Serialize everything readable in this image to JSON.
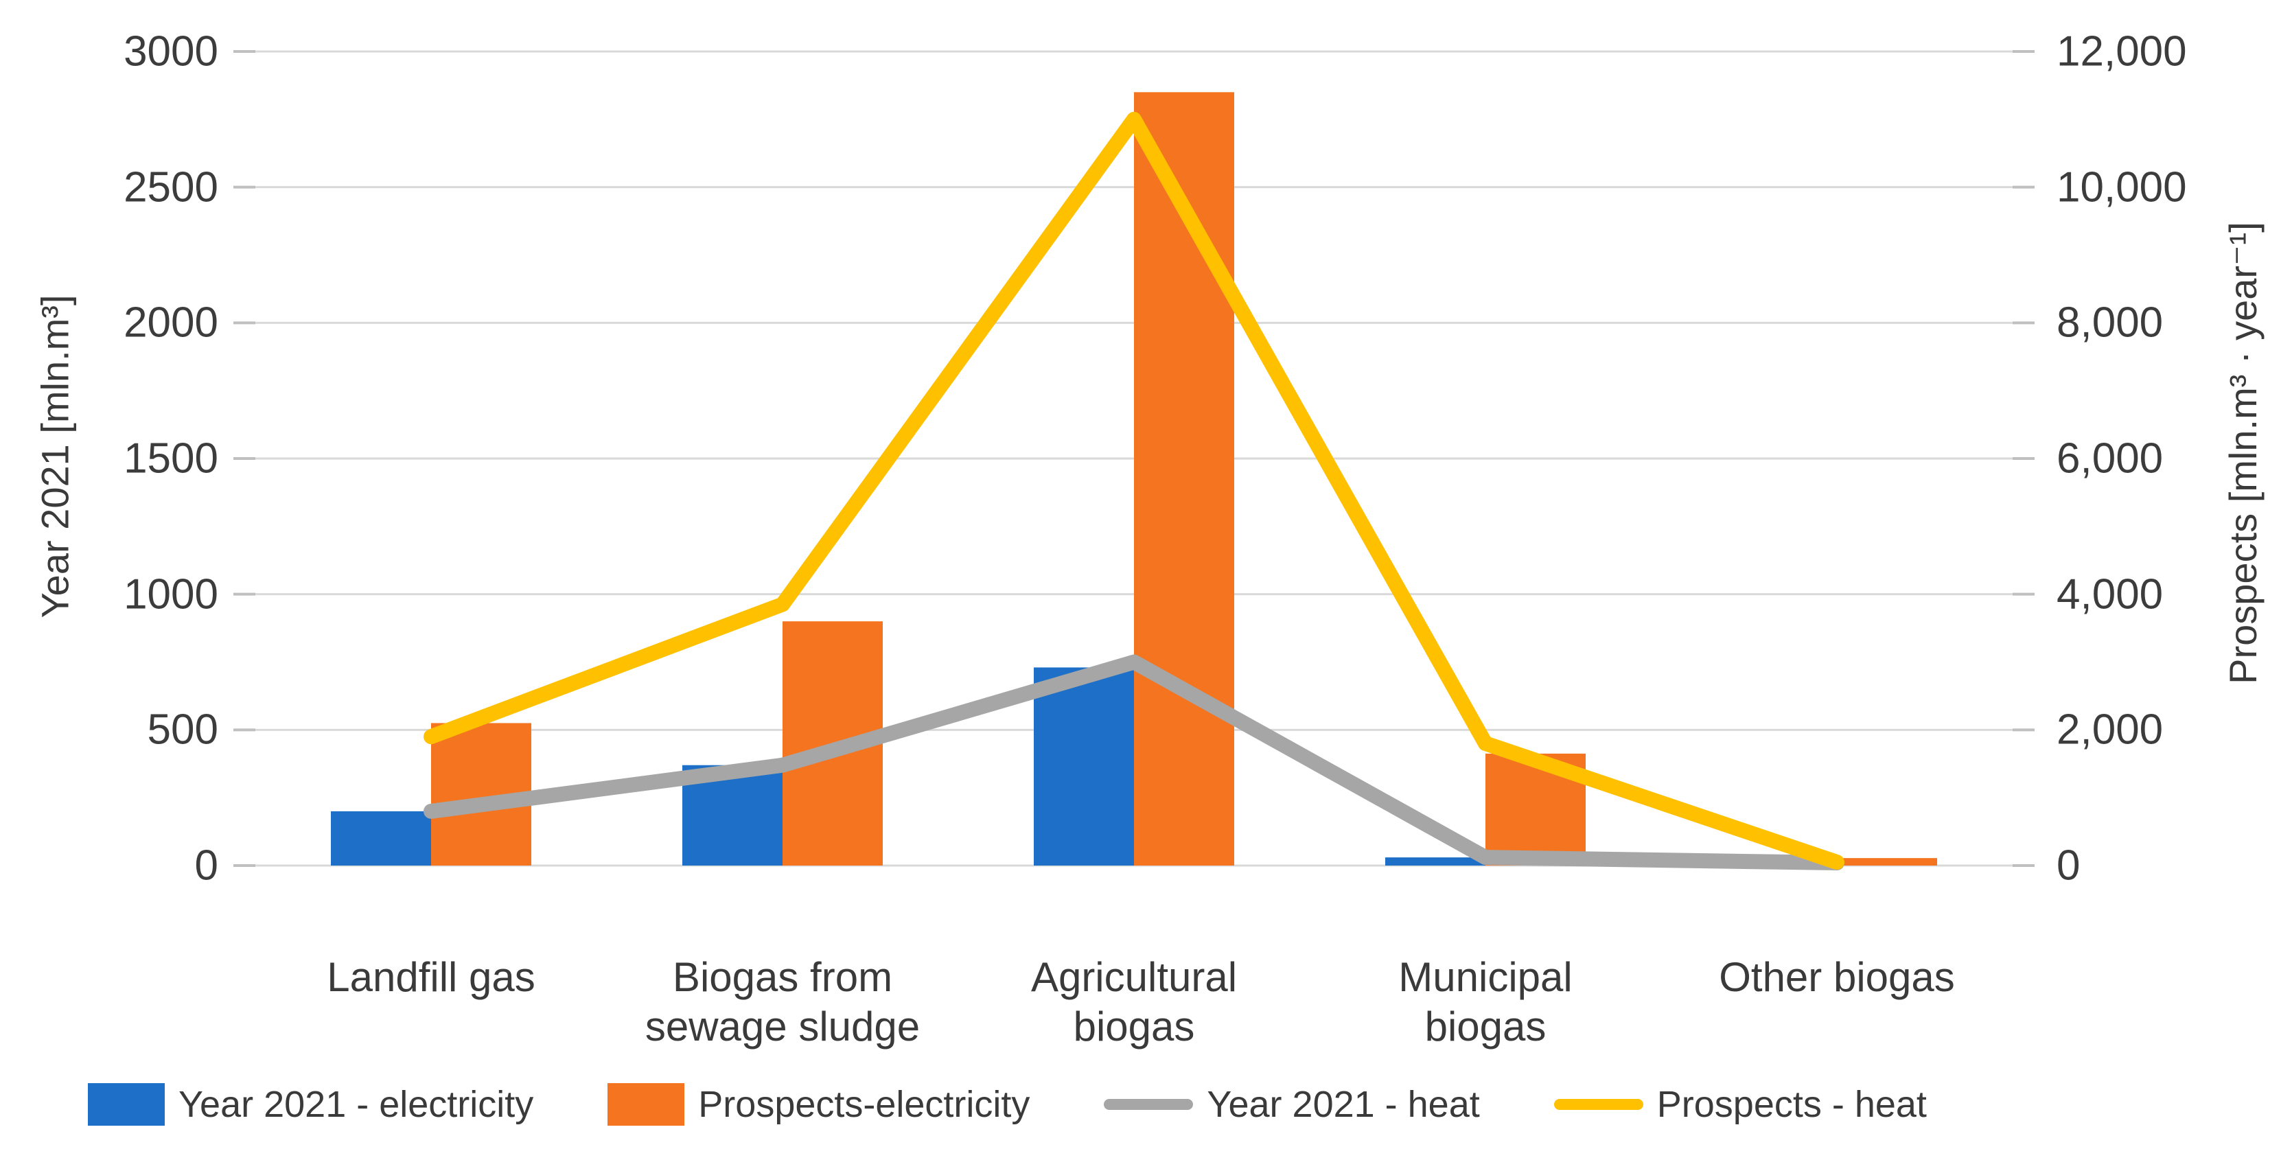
{
  "background": "#ffffff",
  "chart_data": {
    "type": "bar",
    "subtype": "combo-bar-line-dual-axis",
    "title": "",
    "grid": true,
    "gridline_color": "#d9d9d9",
    "tick_mark_color": "#bfbfbf",
    "text_color": "#3a3a3a",
    "legend_position": "bottom",
    "categories": [
      "Landfill gas",
      "Biogas from sewage sludge",
      "Agricultural biogas",
      "Municipal biogas",
      "Other biogas"
    ],
    "category_label_lines": [
      [
        "Landfill gas"
      ],
      [
        "Biogas from",
        "sewage sludge"
      ],
      [
        "Agricultural",
        "biogas"
      ],
      [
        "Municipal",
        "biogas"
      ],
      [
        "Other biogas"
      ]
    ],
    "left_axis": {
      "label": "Year 2021 [mln.m³]",
      "min": 0,
      "max": 3000,
      "tick_step": 500,
      "ticks": [
        "0",
        "500",
        "1000",
        "1500",
        "2000",
        "2500",
        "3000"
      ]
    },
    "right_axis": {
      "label": "Prospects [mln.m³ · year⁻¹]",
      "min": 0,
      "max": 12000,
      "tick_step": 2000,
      "ticks": [
        "0",
        "2,000",
        "4,000",
        "6,000",
        "8,000",
        "10,000",
        "12,000"
      ]
    },
    "series": [
      {
        "name": "Year 2021 - electricity",
        "type": "bar",
        "axis": "left",
        "color": "#1d6fc7",
        "values": [
          200,
          370,
          730,
          30,
          5
        ]
      },
      {
        "name": "Prospects-electricity",
        "type": "bar",
        "axis": "right",
        "color": "#f4741f",
        "values": [
          2100,
          3600,
          11400,
          1650,
          110
        ]
      },
      {
        "name": "Year 2021 - heat",
        "type": "line",
        "axis": "left",
        "color": "#a6a6a6",
        "values": [
          200,
          370,
          750,
          30,
          10
        ]
      },
      {
        "name": "Prospects - heat",
        "type": "line",
        "axis": "right",
        "color": "#ffc000",
        "values": [
          1900,
          3850,
          11000,
          1800,
          50
        ]
      }
    ]
  }
}
